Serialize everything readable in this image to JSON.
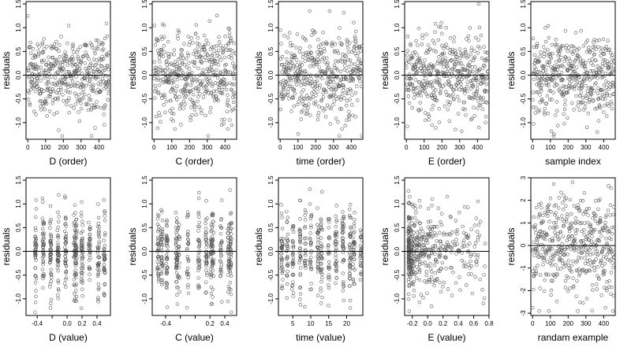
{
  "chart_data": [
    {
      "type": "scatter",
      "xlabel": "D (order)",
      "ylabel": "residuals",
      "xlim": [
        -10,
        465
      ],
      "ylim": [
        -1.35,
        1.55
      ],
      "xticks": [
        0,
        100,
        200,
        300,
        400
      ],
      "xtick_labels": [
        "0",
        "100",
        "200",
        "300",
        "400"
      ],
      "yticks": [
        -1.0,
        -0.5,
        0.0,
        0.5,
        1.0,
        1.5
      ],
      "ytick_labels": [
        "-1.0",
        "-0.5",
        "0.0",
        "0.5",
        "1.0",
        "1.5"
      ],
      "reference_line_y": 0,
      "n_points": 460,
      "point_style": "open-circle",
      "color": "#555555",
      "x_kind": "order",
      "x": [],
      "y": []
    },
    {
      "type": "scatter",
      "xlabel": "C (order)",
      "ylabel": "residuals",
      "xlim": [
        -10,
        465
      ],
      "ylim": [
        -1.35,
        1.55
      ],
      "xticks": [
        0,
        100,
        200,
        300,
        400
      ],
      "xtick_labels": [
        "0",
        "100",
        "200",
        "300",
        "400"
      ],
      "yticks": [
        -1.0,
        -0.5,
        0.0,
        0.5,
        1.0,
        1.5
      ],
      "ytick_labels": [
        "-1.0",
        "-0.5",
        "0.0",
        "0.5",
        "1.0",
        "1.5"
      ],
      "reference_line_y": 0,
      "n_points": 460,
      "point_style": "open-circle",
      "color": "#555555",
      "x_kind": "order",
      "x": [],
      "y": []
    },
    {
      "type": "scatter",
      "xlabel": "time (order)",
      "ylabel": "residuals",
      "xlim": [
        -10,
        465
      ],
      "ylim": [
        -1.35,
        1.55
      ],
      "xticks": [
        0,
        100,
        200,
        300,
        400
      ],
      "xtick_labels": [
        "0",
        "100",
        "200",
        "300",
        "400"
      ],
      "yticks": [
        -1.0,
        -0.5,
        0.0,
        0.5,
        1.0,
        1.5
      ],
      "ytick_labels": [
        "-1.0",
        "-0.5",
        "0.0",
        "0.5",
        "1.0",
        "1.5"
      ],
      "reference_line_y": 0,
      "n_points": 460,
      "point_style": "open-circle",
      "color": "#555555",
      "x_kind": "order",
      "x": [],
      "y": []
    },
    {
      "type": "scatter",
      "xlabel": "E (order)",
      "ylabel": "residuals",
      "xlim": [
        -10,
        465
      ],
      "ylim": [
        -1.35,
        1.55
      ],
      "xticks": [
        0,
        100,
        200,
        300,
        400
      ],
      "xtick_labels": [
        "0",
        "100",
        "200",
        "300",
        "400"
      ],
      "yticks": [
        -1.0,
        -0.5,
        0.0,
        0.5,
        1.0,
        1.5
      ],
      "ytick_labels": [
        "-1.0",
        "-0.5",
        "0.0",
        "0.5",
        "1.0",
        "1.5"
      ],
      "reference_line_y": 0,
      "n_points": 460,
      "point_style": "open-circle",
      "color": "#555555",
      "x_kind": "order",
      "x": [],
      "y": []
    },
    {
      "type": "scatter",
      "xlabel": "sample index",
      "ylabel": "residuals",
      "xlim": [
        -10,
        465
      ],
      "ylim": [
        -1.35,
        1.55
      ],
      "xticks": [
        0,
        100,
        200,
        300,
        400
      ],
      "xtick_labels": [
        "0",
        "100",
        "200",
        "300",
        "400"
      ],
      "yticks": [
        -1.0,
        -0.5,
        0.0,
        0.5,
        1.0,
        1.5
      ],
      "ytick_labels": [
        "-1.0",
        "-0.5",
        "0.0",
        "0.5",
        "1.0",
        "1.5"
      ],
      "reference_line_y": 0,
      "n_points": 460,
      "point_style": "open-circle",
      "color": "#555555",
      "x_kind": "order",
      "x": [],
      "y": []
    },
    {
      "type": "scatter",
      "xlabel": "D (value)",
      "ylabel": "residuals",
      "xlim": [
        -0.55,
        0.58
      ],
      "ylim": [
        -1.35,
        1.55
      ],
      "xticks": [
        -0.4,
        -0.2,
        0.0,
        0.2,
        0.4
      ],
      "xtick_labels": [
        "-0.4",
        "",
        "0.0",
        "0.2",
        "0.4"
      ],
      "yticks": [
        -1.0,
        -0.5,
        0.0,
        0.5,
        1.0,
        1.5
      ],
      "ytick_labels": [
        "-1.0",
        "-0.5",
        "0.0",
        "0.5",
        "1.0",
        "1.5"
      ],
      "reference_line_y": 0,
      "n_points": 460,
      "point_style": "open-circle",
      "color": "#555555",
      "x_kind": "value",
      "x_clusters": [
        -0.42,
        -0.32,
        -0.22,
        -0.12,
        -0.02,
        0.1,
        0.12,
        0.2,
        0.3,
        0.42,
        0.5
      ],
      "x": [],
      "y": []
    },
    {
      "type": "scatter",
      "xlabel": "C (value)",
      "ylabel": "residuals",
      "xlim": [
        -0.58,
        0.56
      ],
      "ylim": [
        -1.35,
        1.55
      ],
      "xticks": [
        -0.4,
        -0.2,
        0.0,
        0.2,
        0.4
      ],
      "xtick_labels": [
        "-0.4",
        "",
        "",
        "0.2",
        "0.4"
      ],
      "yticks": [
        -1.0,
        -0.5,
        0.0,
        0.5,
        1.0,
        1.5
      ],
      "ytick_labels": [
        "-1.0",
        "-0.5",
        "0.0",
        "0.5",
        "1.0",
        "1.5"
      ],
      "reference_line_y": 0,
      "n_points": 460,
      "point_style": "open-circle",
      "color": "#555555",
      "x_kind": "value",
      "x_clusters": [
        -0.5,
        -0.45,
        -0.38,
        -0.25,
        -0.22,
        -0.1,
        0.05,
        0.15,
        0.22,
        0.24,
        0.35,
        0.45,
        0.48
      ],
      "x": [],
      "y": []
    },
    {
      "type": "scatter",
      "xlabel": "time (value)",
      "ylabel": "residuals",
      "xlim": [
        1,
        24.5
      ],
      "ylim": [
        -1.35,
        1.55
      ],
      "xticks": [
        5,
        10,
        15,
        20
      ],
      "xtick_labels": [
        "5",
        "10",
        "15",
        "20"
      ],
      "yticks": [
        -1.0,
        -0.5,
        0.0,
        0.5,
        1.0,
        1.5
      ],
      "ytick_labels": [
        "-1.0",
        "-0.5",
        "0.0",
        "0.5",
        "1.0",
        "1.5"
      ],
      "reference_line_y": 0,
      "n_points": 460,
      "point_style": "open-circle",
      "color": "#555555",
      "x_kind": "value",
      "x_clusters": [
        2,
        3.5,
        5,
        7,
        8.5,
        10,
        12,
        13,
        15,
        17,
        19,
        21,
        22,
        24
      ],
      "x": [],
      "y": []
    },
    {
      "type": "scatter",
      "xlabel": "E (value)",
      "ylabel": "residuals",
      "xlim": [
        -0.3,
        0.8
      ],
      "ylim": [
        -1.35,
        1.55
      ],
      "xticks": [
        -0.2,
        0.0,
        0.2,
        0.4,
        0.6,
        0.8
      ],
      "xtick_labels": [
        "-0.2",
        "0.0",
        "0.2",
        "0.4",
        "0.6",
        "0.8"
      ],
      "yticks": [
        -1.0,
        -0.5,
        0.0,
        0.5,
        1.0,
        1.5
      ],
      "ytick_labels": [
        "-1.0",
        "-0.5",
        "0.0",
        "0.5",
        "1.0",
        "1.5"
      ],
      "reference_line_y": 0,
      "n_points": 460,
      "point_style": "open-circle",
      "color": "#555555",
      "x_kind": "skewed",
      "x": [],
      "y": []
    },
    {
      "type": "scatter",
      "xlabel": "randam example",
      "ylabel": "residuals",
      "xlim": [
        -10,
        465
      ],
      "ylim": [
        -3.1,
        3.0
      ],
      "xticks": [
        0,
        100,
        200,
        300,
        400
      ],
      "xtick_labels": [
        "0",
        "100",
        "200",
        "300",
        "400"
      ],
      "yticks": [
        -3,
        -2,
        -1,
        0,
        1,
        2,
        3
      ],
      "ytick_labels": [
        "-3",
        "-2",
        "-1",
        "0",
        "1",
        "2",
        "3"
      ],
      "reference_line_y": 0,
      "n_points": 460,
      "point_style": "open-circle",
      "color": "#555555",
      "x_kind": "order_wide",
      "x": [],
      "y": []
    }
  ]
}
